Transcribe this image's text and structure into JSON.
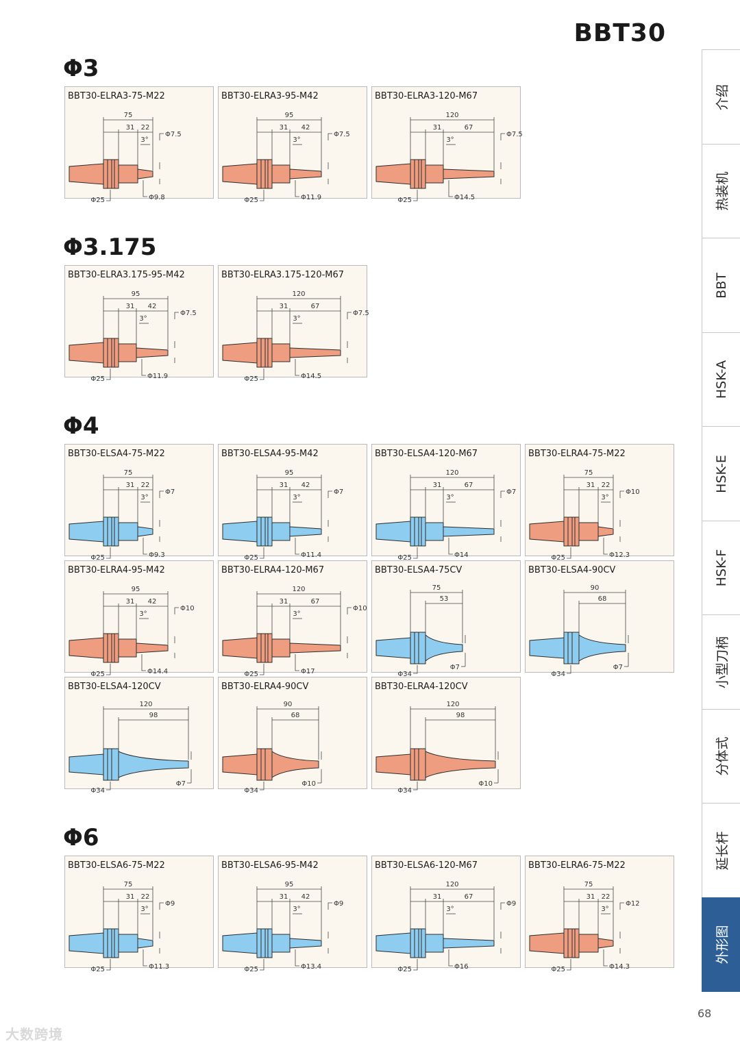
{
  "header": {
    "title": "BBT30"
  },
  "colors": {
    "red_tool": "#ef9d80",
    "blue_tool": "#8fcdf0",
    "outline": "#2b2b2b"
  },
  "sections": [
    {
      "title": "Φ3",
      "cards": [
        {
          "label": "BBT30-ELRA3-75-M22",
          "kind": "collet",
          "color": "red",
          "total": "75",
          "d1": "31",
          "d2": "22",
          "angle": "3°",
          "tip": "Φ7.5",
          "neck": "Φ9.8",
          "flange": "Φ25"
        },
        {
          "label": "BBT30-ELRA3-95-M42",
          "kind": "collet",
          "color": "red",
          "total": "95",
          "d1": "31",
          "d2": "42",
          "angle": "3°",
          "tip": "Φ7.5",
          "neck": "Φ11.9",
          "flange": "Φ25"
        },
        {
          "label": "BBT30-ELRA3-120-M67",
          "kind": "collet",
          "color": "red",
          "total": "120",
          "d1": "31",
          "d2": "67",
          "angle": "3°",
          "tip": "Φ7.5",
          "neck": "Φ14.5",
          "flange": "Φ25"
        }
      ]
    },
    {
      "title": "Φ3.175",
      "cards": [
        {
          "label": "BBT30-ELRA3.175-95-M42",
          "kind": "collet",
          "color": "red",
          "total": "95",
          "d1": "31",
          "d2": "42",
          "angle": "3°",
          "tip": "Φ7.5",
          "neck": "Φ11.9",
          "flange": "Φ25"
        },
        {
          "label": "BBT30-ELRA3.175-120-M67",
          "kind": "collet",
          "color": "red",
          "total": "120",
          "d1": "31",
          "d2": "67",
          "angle": "3°",
          "tip": "Φ7.5",
          "neck": "Φ14.5",
          "flange": "Φ25"
        }
      ]
    },
    {
      "title": "Φ4",
      "cards": [
        {
          "label": "BBT30-ELSA4-75-M22",
          "kind": "collet",
          "color": "blue",
          "total": "75",
          "d1": "31",
          "d2": "22",
          "angle": "3°",
          "tip": "Φ7",
          "neck": "Φ9.3",
          "flange": "Φ25"
        },
        {
          "label": "BBT30-ELSA4-95-M42",
          "kind": "collet",
          "color": "blue",
          "total": "95",
          "d1": "31",
          "d2": "42",
          "angle": "3°",
          "tip": "Φ7",
          "neck": "Φ11.4",
          "flange": "Φ25"
        },
        {
          "label": "BBT30-ELSA4-120-M67",
          "kind": "collet",
          "color": "blue",
          "total": "120",
          "d1": "31",
          "d2": "67",
          "angle": "3°",
          "tip": "Φ7",
          "neck": "Φ14",
          "flange": "Φ25"
        },
        {
          "label": "BBT30-ELRA4-75-M22",
          "kind": "collet",
          "color": "red",
          "total": "75",
          "d1": "31",
          "d2": "22",
          "angle": "3°",
          "tip": "Φ10",
          "neck": "Φ12.3",
          "flange": "Φ25"
        },
        {
          "label": "BBT30-ELRA4-95-M42",
          "kind": "collet",
          "color": "red",
          "total": "95",
          "d1": "31",
          "d2": "42",
          "angle": "3°",
          "tip": "Φ10",
          "neck": "Φ14.4",
          "flange": "Φ25"
        },
        {
          "label": "BBT30-ELRA4-120-M67",
          "kind": "collet",
          "color": "red",
          "total": "120",
          "d1": "31",
          "d2": "67",
          "angle": "3°",
          "tip": "Φ10",
          "neck": "Φ17",
          "flange": "Φ25"
        },
        {
          "label": "BBT30-ELSA4-75CV",
          "kind": "cone",
          "color": "blue",
          "total": "75",
          "d1": "53",
          "tip": "Φ7",
          "flange": "Φ34"
        },
        {
          "label": "BBT30-ELSA4-90CV",
          "kind": "cone",
          "color": "blue",
          "total": "90",
          "d1": "68",
          "tip": "Φ7",
          "flange": "Φ34"
        },
        {
          "label": "BBT30-ELSA4-120CV",
          "kind": "cone",
          "color": "blue",
          "total": "120",
          "d1": "98",
          "tip": "Φ7",
          "flange": "Φ34"
        },
        {
          "label": "BBT30-ELRA4-90CV",
          "kind": "cone",
          "color": "red",
          "total": "90",
          "d1": "68",
          "tip": "Φ10",
          "flange": "Φ34"
        },
        {
          "label": "BBT30-ELRA4-120CV",
          "kind": "cone",
          "color": "red",
          "total": "120",
          "d1": "98",
          "tip": "Φ10",
          "flange": "Φ34"
        }
      ]
    },
    {
      "title": "Φ6",
      "cards": [
        {
          "label": "BBT30-ELSA6-75-M22",
          "kind": "collet",
          "color": "blue",
          "total": "75",
          "d1": "31",
          "d2": "22",
          "angle": "3°",
          "tip": "Φ9",
          "neck": "Φ11.3",
          "flange": "Φ25"
        },
        {
          "label": "BBT30-ELSA6-95-M42",
          "kind": "collet",
          "color": "blue",
          "total": "95",
          "d1": "31",
          "d2": "42",
          "angle": "3°",
          "tip": "Φ9",
          "neck": "Φ13.4",
          "flange": "Φ25"
        },
        {
          "label": "BBT30-ELSA6-120-M67",
          "kind": "collet",
          "color": "blue",
          "total": "120",
          "d1": "31",
          "d2": "67",
          "angle": "3°",
          "tip": "Φ9",
          "neck": "Φ16",
          "flange": "Φ25"
        },
        {
          "label": "BBT30-ELRA6-75-M22",
          "kind": "collet",
          "color": "red",
          "total": "75",
          "d1": "31",
          "d2": "22",
          "angle": "3°",
          "tip": "Φ12",
          "neck": "Φ14.3",
          "flange": "Φ25"
        }
      ]
    }
  ],
  "sidebar": {
    "tabs": [
      {
        "label": "介绍",
        "active": false
      },
      {
        "label": "热装机",
        "active": false
      },
      {
        "label": "BBT",
        "active": false
      },
      {
        "label": "HSK-A",
        "active": false
      },
      {
        "label": "HSK-E",
        "active": false
      },
      {
        "label": "HSK-F",
        "active": false
      },
      {
        "label": "小型刀柄",
        "active": false
      },
      {
        "label": "分体式",
        "active": false
      },
      {
        "label": "延长杆",
        "active": false
      },
      {
        "label": "外形图",
        "active": true
      }
    ]
  },
  "footer": {
    "page_number": "68",
    "watermark": "大数跨境"
  }
}
